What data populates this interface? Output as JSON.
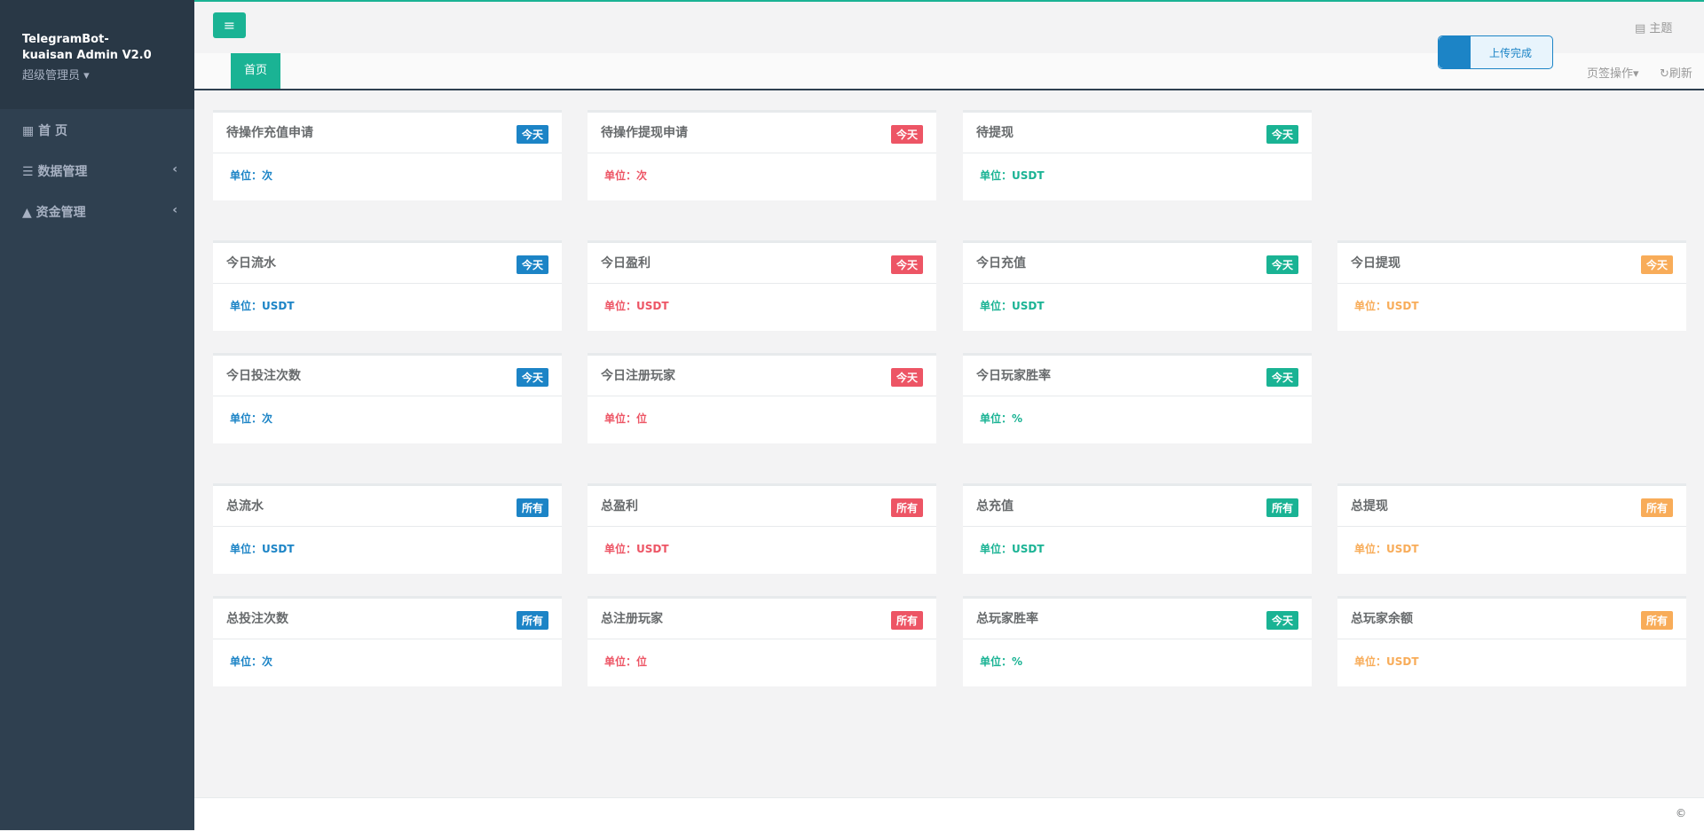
{
  "sidebar": {
    "brand": "TelegramBot-kuaisan Admin V2.0",
    "user": "超级管理员",
    "menu": [
      "首 页",
      "数据管理",
      "资金管理"
    ]
  },
  "header": {
    "theme": "主题",
    "toast": "上传完成",
    "tab": "首页",
    "tab_ops": "页签操作",
    "refresh": "刷新"
  },
  "cards": [
    [
      {
        "title": "待操作充值申请",
        "badge": "今天",
        "unit": "单位：次",
        "color": "#1c84c6"
      },
      {
        "title": "待操作提现申请",
        "badge": "今天",
        "unit": "单位：次",
        "color": "#ed5565"
      },
      {
        "title": "待提现",
        "badge": "今天",
        "unit": "单位：USDT",
        "color": "#1ab394"
      }
    ],
    [
      {
        "title": "今日流水",
        "badge": "今天",
        "unit": "单位：USDT",
        "color": "#1c84c6"
      },
      {
        "title": "今日盈利",
        "badge": "今天",
        "unit": "单位：USDT",
        "color": "#ed5565"
      },
      {
        "title": "今日充值",
        "badge": "今天",
        "unit": "单位：USDT",
        "color": "#1ab394"
      },
      {
        "title": "今日提现",
        "badge": "今天",
        "unit": "单位：USDT",
        "color": "#f8ac59"
      }
    ],
    [
      {
        "title": "今日投注次数",
        "badge": "今天",
        "unit": "单位：次",
        "color": "#1c84c6"
      },
      {
        "title": "今日注册玩家",
        "badge": "今天",
        "unit": "单位：位",
        "color": "#ed5565"
      },
      {
        "title": "今日玩家胜率",
        "badge": "今天",
        "unit": "单位：%",
        "color": "#1ab394"
      }
    ],
    [
      {
        "title": "总流水",
        "badge": "所有",
        "unit": "单位：USDT",
        "color": "#1c84c6"
      },
      {
        "title": "总盈利",
        "badge": "所有",
        "unit": "单位：USDT",
        "color": "#ed5565"
      },
      {
        "title": "总充值",
        "badge": "所有",
        "unit": "单位：USDT",
        "color": "#1ab394"
      },
      {
        "title": "总提现",
        "badge": "所有",
        "unit": "单位：USDT",
        "color": "#f8ac59"
      }
    ],
    [
      {
        "title": "总投注次数",
        "badge": "所有",
        "unit": "单位：次",
        "color": "#1c84c6"
      },
      {
        "title": "总注册玩家",
        "badge": "所有",
        "unit": "单位：位",
        "color": "#ed5565"
      },
      {
        "title": "总玩家胜率",
        "badge": "今天",
        "unit": "单位：%",
        "color": "#1ab394"
      },
      {
        "title": "总玩家余额",
        "badge": "所有",
        "unit": "单位：USDT",
        "color": "#f8ac59"
      }
    ]
  ],
  "footer": "©"
}
